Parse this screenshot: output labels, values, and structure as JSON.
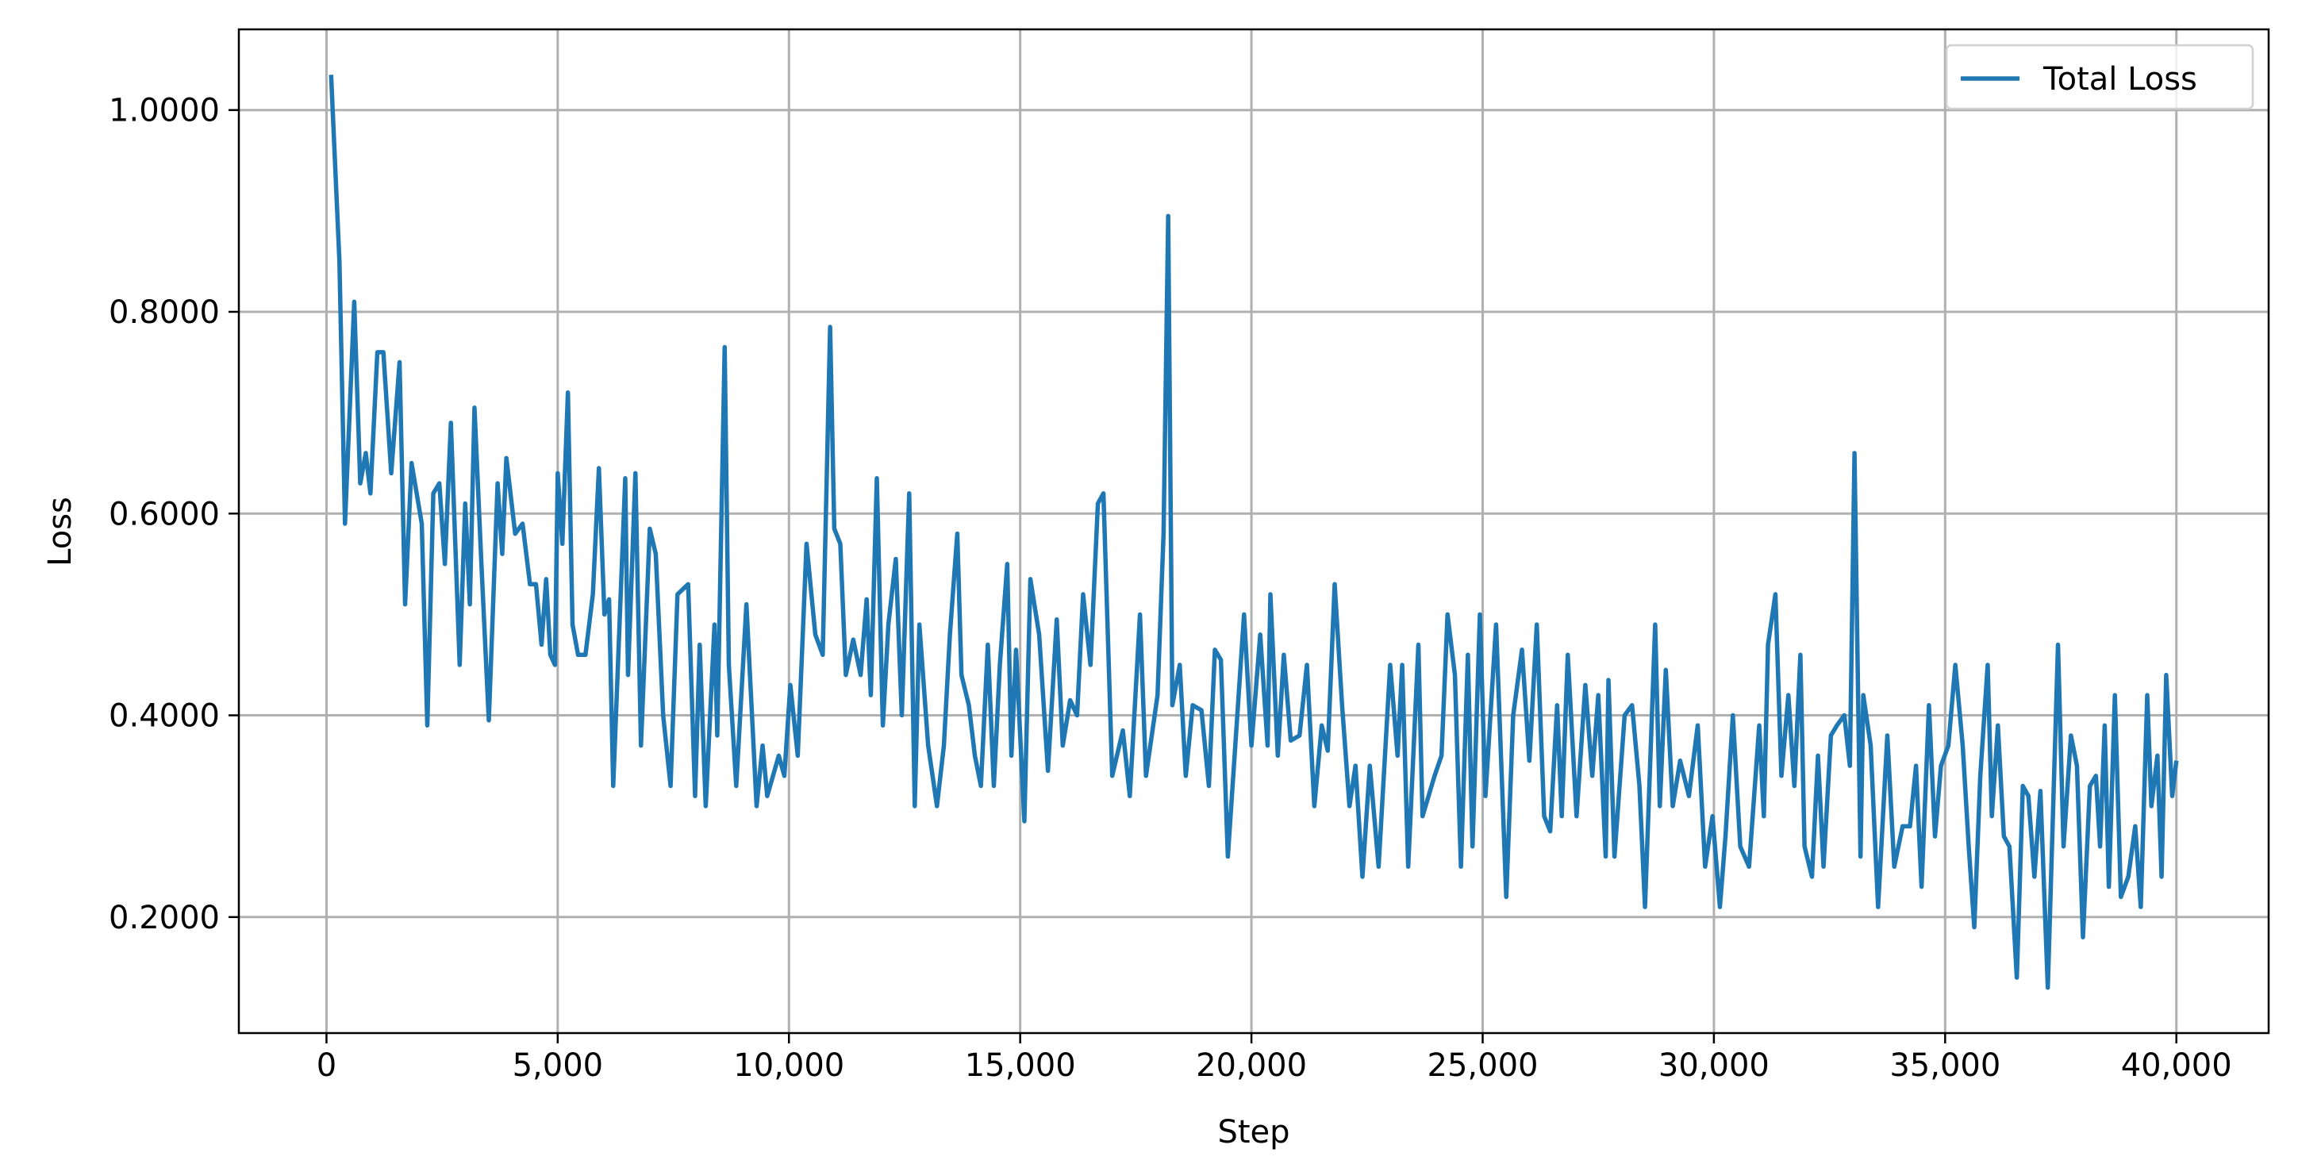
{
  "chart_data": {
    "type": "line",
    "xlabel": "Step",
    "ylabel": "Loss",
    "xlim": [
      -1895,
      41995
    ],
    "ylim": [
      0.085,
      1.08
    ],
    "xticks": [
      0,
      {
        "value": 5000,
        "label": "5,000"
      },
      {
        "value": 10000,
        "label": "10,000"
      },
      {
        "value": 15000,
        "label": "15,000"
      },
      {
        "value": 20000,
        "label": "20,000"
      },
      {
        "value": 25000,
        "label": "25,000"
      },
      {
        "value": 30000,
        "label": "30,000"
      },
      {
        "value": 35000,
        "label": "35,000"
      },
      {
        "value": 40000,
        "label": "40,000"
      }
    ],
    "yticks": [
      {
        "value": 0.2,
        "label": "0.2000"
      },
      {
        "value": 0.4,
        "label": "0.4000"
      },
      {
        "value": 0.6,
        "label": "0.6000"
      },
      {
        "value": 0.8,
        "label": "0.8000"
      },
      {
        "value": 1.0,
        "label": "1.0000"
      }
    ],
    "grid": true,
    "legend": "upper right",
    "x": [
      100,
      280,
      400,
      600,
      730,
      850,
      950,
      1100,
      1230,
      1400,
      1580,
      1700,
      1840,
      2060,
      2180,
      2310,
      2440,
      2560,
      2690,
      2880,
      3000,
      3100,
      3200,
      3350,
      3510,
      3700,
      3800,
      3890,
      4080,
      4240,
      4400,
      4530,
      4650,
      4750,
      4840,
      4940,
      5000,
      5100,
      5220,
      5320,
      5440,
      5600,
      5760,
      5890,
      6010,
      6110,
      6200,
      6460,
      6520,
      6680,
      6800,
      6990,
      7120,
      7280,
      7440,
      7590,
      7820,
      7970,
      8070,
      8200,
      8390,
      8450,
      8610,
      8700,
      8860,
      9080,
      9300,
      9430,
      9530,
      9780,
      9900,
      10030,
      10190,
      10380,
      10570,
      10730,
      10890,
      10980,
      11110,
      11230,
      11390,
      11550,
      11680,
      11770,
      11900,
      12030,
      12150,
      12310,
      12440,
      12600,
      12720,
      12820,
      13010,
      13200,
      13350,
      13480,
      13640,
      13730,
      13890,
      14020,
      14150,
      14300,
      14430,
      14560,
      14720,
      14810,
      14910,
      15090,
      15220,
      15410,
      15600,
      15790,
      15920,
      16080,
      16230,
      16360,
      16520,
      16680,
      16800,
      16990,
      17220,
      17370,
      17590,
      17720,
      17970,
      18100,
      18200,
      18290,
      18450,
      18580,
      18730,
      18920,
      19080,
      19210,
      19340,
      19490,
      19680,
      19840,
      20000,
      20190,
      20350,
      20410,
      20570,
      20700,
      20850,
      21040,
      21200,
      21360,
      21520,
      21650,
      21800,
      21960,
      22120,
      22250,
      22400,
      22560,
      22750,
      23000,
      23160,
      23260,
      23390,
      23610,
      23700,
      23960,
      24110,
      24240,
      24400,
      24530,
      24680,
      24780,
      24940,
      25060,
      25290,
      25510,
      25660,
      25850,
      26010,
      26170,
      26330,
      26460,
      26610,
      26710,
      26840,
      27030,
      27220,
      27370,
      27500,
      27660,
      27720,
      27850,
      28070,
      28230,
      28390,
      28510,
      28730,
      28830,
      28960,
      29110,
      29270,
      29460,
      29650,
      29810,
      29970,
      30130,
      30250,
      30410,
      30570,
      30760,
      30980,
      31080,
      31170,
      31330,
      31460,
      31610,
      31740,
      31870,
      31960,
      32120,
      32250,
      32370,
      32530,
      32660,
      32820,
      32940,
      33040,
      33170,
      33230,
      33390,
      33550,
      33750,
      33900,
      34080,
      34240,
      34370,
      34490,
      34650,
      34780,
      34910,
      35070,
      35220,
      35380,
      35510,
      35630,
      35760,
      35920,
      36010,
      36140,
      36270,
      36390,
      36550,
      36680,
      36800,
      36930,
      37060,
      37220,
      37440,
      37560,
      37720,
      37850,
      37980,
      38130,
      38260,
      38350,
      38450,
      38540,
      38670,
      38800,
      38960,
      39110,
      39230,
      39370,
      39460,
      39590,
      39680,
      39780,
      39910,
      40000
    ],
    "series": [
      {
        "name": "Total Loss",
        "color": "#1f77b4",
        "values": [
          1.035,
          0.85,
          0.59,
          0.81,
          0.63,
          0.66,
          0.62,
          0.76,
          0.76,
          0.64,
          0.75,
          0.51,
          0.65,
          0.59,
          0.39,
          0.62,
          0.63,
          0.55,
          0.69,
          0.45,
          0.61,
          0.51,
          0.705,
          0.55,
          0.395,
          0.63,
          0.56,
          0.655,
          0.58,
          0.59,
          0.53,
          0.53,
          0.47,
          0.535,
          0.46,
          0.45,
          0.64,
          0.57,
          0.72,
          0.49,
          0.46,
          0.46,
          0.52,
          0.645,
          0.5,
          0.515,
          0.33,
          0.635,
          0.44,
          0.64,
          0.37,
          0.585,
          0.56,
          0.4,
          0.33,
          0.52,
          0.53,
          0.32,
          0.47,
          0.31,
          0.49,
          0.38,
          0.765,
          0.45,
          0.33,
          0.51,
          0.31,
          0.37,
          0.32,
          0.36,
          0.34,
          0.43,
          0.36,
          0.57,
          0.48,
          0.46,
          0.785,
          0.585,
          0.57,
          0.44,
          0.475,
          0.44,
          0.515,
          0.42,
          0.635,
          0.39,
          0.49,
          0.555,
          0.4,
          0.62,
          0.31,
          0.49,
          0.37,
          0.31,
          0.37,
          0.48,
          0.58,
          0.44,
          0.41,
          0.36,
          0.33,
          0.47,
          0.33,
          0.45,
          0.55,
          0.36,
          0.465,
          0.295,
          0.535,
          0.48,
          0.345,
          0.495,
          0.37,
          0.415,
          0.4,
          0.52,
          0.45,
          0.61,
          0.62,
          0.34,
          0.385,
          0.32,
          0.5,
          0.34,
          0.42,
          0.58,
          0.895,
          0.41,
          0.45,
          0.34,
          0.41,
          0.405,
          0.33,
          0.465,
          0.455,
          0.26,
          0.39,
          0.5,
          0.37,
          0.48,
          0.37,
          0.52,
          0.36,
          0.46,
          0.375,
          0.38,
          0.45,
          0.31,
          0.39,
          0.365,
          0.53,
          0.41,
          0.31,
          0.35,
          0.24,
          0.35,
          0.25,
          0.45,
          0.36,
          0.45,
          0.25,
          0.47,
          0.3,
          0.34,
          0.36,
          0.5,
          0.44,
          0.25,
          0.46,
          0.27,
          0.5,
          0.32,
          0.49,
          0.22,
          0.4,
          0.465,
          0.355,
          0.49,
          0.3,
          0.285,
          0.41,
          0.3,
          0.46,
          0.3,
          0.43,
          0.34,
          0.42,
          0.26,
          0.435,
          0.26,
          0.4,
          0.41,
          0.33,
          0.21,
          0.49,
          0.31,
          0.445,
          0.31,
          0.355,
          0.32,
          0.39,
          0.25,
          0.3,
          0.21,
          0.28,
          0.4,
          0.27,
          0.25,
          0.39,
          0.3,
          0.47,
          0.52,
          0.34,
          0.42,
          0.33,
          0.46,
          0.27,
          0.24,
          0.36,
          0.25,
          0.38,
          0.39,
          0.4,
          0.35,
          0.66,
          0.26,
          0.42,
          0.37,
          0.21,
          0.38,
          0.25,
          0.29,
          0.29,
          0.35,
          0.23,
          0.41,
          0.28,
          0.35,
          0.37,
          0.45,
          0.37,
          0.27,
          0.19,
          0.34,
          0.45,
          0.3,
          0.39,
          0.28,
          0.27,
          0.14,
          0.33,
          0.32,
          0.24,
          0.325,
          0.13,
          0.47,
          0.27,
          0.38,
          0.35,
          0.18,
          0.33,
          0.34,
          0.27,
          0.39,
          0.23,
          0.42,
          0.22,
          0.24,
          0.29,
          0.21,
          0.42,
          0.31,
          0.36,
          0.24,
          0.44,
          0.32,
          0.355
        ]
      }
    ]
  }
}
